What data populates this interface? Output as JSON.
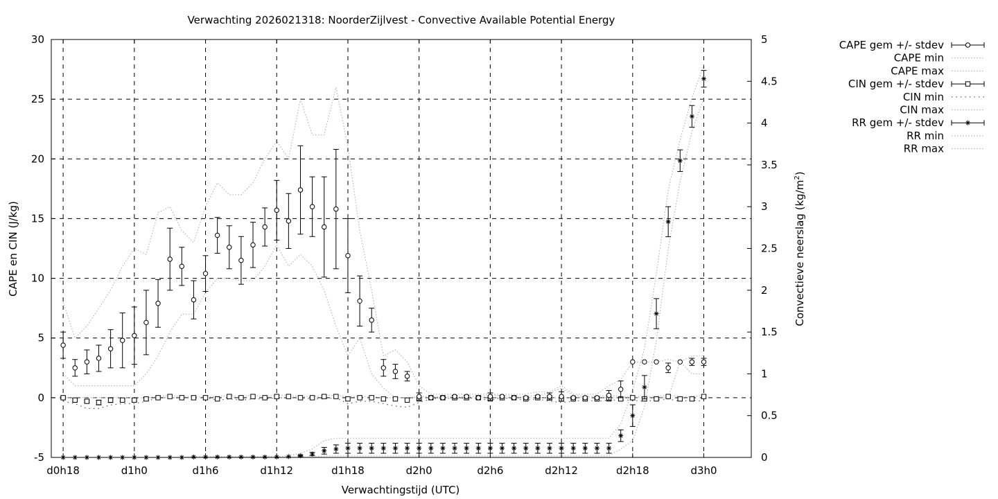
{
  "chart_data": {
    "type": "line",
    "title": "Verwachting 2026021318: NoorderZijlvest - Convective Available Potential Energy",
    "xlabel": "Verwachtingstijd (UTC)",
    "ylabel_left": "CAPE en CIN (J/kg)",
    "ylabel_right": "Convectieve neerslag (kg/m",
    "ylabel_right_sup": "2",
    "ylabel_right_close": ")",
    "x_range_hours": [
      -1,
      58
    ],
    "ylim_left": [
      -5,
      30
    ],
    "ylim_right": [
      0,
      5
    ],
    "x_tick_labels": [
      {
        "h": 0,
        "label": "d0h18"
      },
      {
        "h": 6,
        "label": "d1h0"
      },
      {
        "h": 12,
        "label": "d1h6"
      },
      {
        "h": 18,
        "label": "d1h12"
      },
      {
        "h": 24,
        "label": "d1h18"
      },
      {
        "h": 30,
        "label": "d2h0"
      },
      {
        "h": 36,
        "label": "d2h6"
      },
      {
        "h": 42,
        "label": "d2h12"
      },
      {
        "h": 48,
        "label": "d2h18"
      },
      {
        "h": 54,
        "label": "d3h0"
      }
    ],
    "y_left_ticks": [
      -5,
      0,
      5,
      10,
      15,
      20,
      25,
      30
    ],
    "y_right_ticks": [
      0,
      0.5,
      1,
      1.5,
      2,
      2.5,
      3,
      3.5,
      4,
      4.5,
      5
    ],
    "grid": true,
    "legend_position": "outside-right",
    "legend": [
      {
        "label": "CAPE gem +/- stdev",
        "marker": "circle",
        "style": "errorbar"
      },
      {
        "label": "CAPE min",
        "style": "dotted"
      },
      {
        "label": "CAPE max",
        "style": "dotted"
      },
      {
        "label": "CIN gem +/- stdev",
        "marker": "square",
        "style": "errorbar"
      },
      {
        "label": "CIN min",
        "style": "sparse-dotted"
      },
      {
        "label": "CIN max",
        "style": "dotted"
      },
      {
        "label": "RR gem +/- stdev",
        "marker": "star",
        "style": "errorbar"
      },
      {
        "label": "RR min",
        "style": "dotted"
      },
      {
        "label": "RR max",
        "style": "dotted"
      }
    ],
    "x_hours": [
      0,
      1,
      2,
      3,
      4,
      5,
      6,
      7,
      8,
      9,
      10,
      11,
      12,
      13,
      14,
      15,
      16,
      17,
      18,
      19,
      20,
      21,
      22,
      23,
      24,
      25,
      26,
      27,
      28,
      29,
      30,
      31,
      32,
      33,
      34,
      35,
      36,
      37,
      38,
      39,
      40,
      41,
      42,
      43,
      44,
      45,
      46,
      47,
      48,
      49,
      50,
      51,
      52,
      53,
      54
    ],
    "series": [
      {
        "name": "CAPE gem +/- stdev",
        "axis": "left",
        "mean": [
          4.4,
          2.5,
          3.0,
          3.3,
          4.1,
          4.8,
          5.2,
          6.3,
          7.9,
          11.6,
          11.0,
          8.2,
          10.4,
          13.6,
          12.6,
          11.5,
          12.8,
          14.3,
          15.7,
          14.8,
          17.4,
          16.0,
          14.3,
          15.8,
          11.9,
          8.1,
          6.5,
          2.5,
          2.2,
          1.8,
          0.1,
          0.0,
          0.0,
          0.1,
          0.1,
          0.0,
          0.1,
          0.1,
          0.0,
          0.0,
          0.1,
          0.1,
          0.1,
          0.0,
          0.0,
          0.0,
          0.2,
          0.7,
          3.0,
          3.0,
          3.0,
          2.5,
          3.0,
          3.0,
          3.0
        ],
        "stdev": [
          1.1,
          0.7,
          1.0,
          1.1,
          1.6,
          2.3,
          2.4,
          2.7,
          2.0,
          2.6,
          1.6,
          1.6,
          1.5,
          1.5,
          1.8,
          2.0,
          1.9,
          1.6,
          2.5,
          2.3,
          3.7,
          2.5,
          4.2,
          5.0,
          3.1,
          2.1,
          1.0,
          0.7,
          0.6,
          0.4,
          0.3,
          0.0,
          0.0,
          0.1,
          0.1,
          0.0,
          0.3,
          0.1,
          0.0,
          0.1,
          0.1,
          0.3,
          0.4,
          0.1,
          0.1,
          0.1,
          0.4,
          0.7,
          0.0,
          0.0,
          0.0,
          0.4,
          0.0,
          0.3,
          0.3
        ]
      },
      {
        "name": "CAPE min",
        "axis": "left",
        "values": [
          2.0,
          1.0,
          1.0,
          1.0,
          1.0,
          1.0,
          1.0,
          2.0,
          3.5,
          5.5,
          7.0,
          7.0,
          8.8,
          10.0,
          10.0,
          9.8,
          9.8,
          11.0,
          12.8,
          11.0,
          12.0,
          11.0,
          9.0,
          6.0,
          3.5,
          5.0,
          2.0,
          0.8,
          0.0,
          0.0,
          0.0,
          0.0,
          0.0,
          0.0,
          0.0,
          0.0,
          0.0,
          0.0,
          0.0,
          0.0,
          0.0,
          0.0,
          0.0,
          0.0,
          0.0,
          0.0,
          0.0,
          0.0,
          0.0,
          0.0,
          0.0,
          0.0,
          3.0,
          2.0,
          2.0
        ]
      },
      {
        "name": "CAPE max",
        "axis": "left",
        "values": [
          8.0,
          5.0,
          6.0,
          7.5,
          9.0,
          11.0,
          12.5,
          12.0,
          15.5,
          16.0,
          14.0,
          13.0,
          16.0,
          18.0,
          17.0,
          17.0,
          18.0,
          20.0,
          21.5,
          20.0,
          25.0,
          22.0,
          22.0,
          26.0,
          21.0,
          14.0,
          9.0,
          3.5,
          4.0,
          3.0,
          1.0,
          0.3,
          0.3,
          0.3,
          0.3,
          0.3,
          0.3,
          0.3,
          0.3,
          0.3,
          0.5,
          0.5,
          1.0,
          0.3,
          0.3,
          0.3,
          1.0,
          1.5,
          3.0,
          3.0,
          3.0,
          3.2,
          3.0,
          3.5,
          3.5
        ]
      },
      {
        "name": "CIN gem +/- stdev",
        "axis": "left",
        "mean": [
          0.0,
          -0.2,
          -0.3,
          -0.4,
          -0.2,
          -0.2,
          -0.2,
          -0.1,
          0.0,
          0.1,
          0.0,
          0.0,
          0.0,
          -0.1,
          0.1,
          0.0,
          0.1,
          0.0,
          0.1,
          0.1,
          0.0,
          0.0,
          0.1,
          0.1,
          -0.1,
          0.0,
          0.0,
          -0.1,
          -0.1,
          -0.2,
          -0.1,
          0.0,
          0.0,
          0.0,
          0.0,
          0.0,
          -0.1,
          0.0,
          0.0,
          -0.1,
          0.0,
          0.0,
          -0.1,
          -0.1,
          -0.1,
          -0.1,
          -0.1,
          -0.1,
          0.0,
          -0.1,
          -0.1,
          0.1,
          -0.1,
          -0.1,
          0.1
        ],
        "stdev": [
          0.1,
          0.1,
          0.1,
          0.2,
          0.2,
          0.1,
          0.1,
          0.1,
          0.0,
          0.0,
          0.0,
          0.0,
          0.0,
          0.0,
          0.0,
          0.0,
          0.0,
          0.0,
          0.0,
          0.0,
          0.0,
          0.0,
          0.0,
          0.0,
          0.0,
          0.0,
          0.0,
          0.0,
          0.0,
          0.0,
          0.0,
          0.0,
          0.0,
          0.0,
          0.0,
          0.0,
          0.0,
          0.0,
          0.0,
          0.0,
          0.0,
          0.0,
          0.0,
          0.0,
          0.0,
          0.0,
          0.0,
          0.0,
          0.0,
          0.0,
          0.0,
          0.0,
          0.0,
          0.0,
          0.0
        ]
      },
      {
        "name": "CIN min",
        "axis": "left",
        "values": [
          -0.3,
          -0.5,
          -0.9,
          -0.9,
          -0.6,
          -0.5,
          -0.5,
          -0.3,
          0.0,
          0.0,
          0.0,
          0.0,
          0.0,
          -0.2,
          -0.1,
          -0.2,
          -0.1,
          -0.1,
          0.0,
          0.0,
          0.0,
          -0.1,
          -0.1,
          0.0,
          -0.5,
          -0.3,
          -0.3,
          -0.5,
          -0.7,
          -0.8,
          -0.4,
          -0.1,
          0.0,
          -0.1,
          0.0,
          -0.1,
          -0.2,
          0.0,
          -0.1,
          -0.2,
          -0.1,
          -0.3,
          -0.4,
          -0.3,
          -0.2,
          -0.3,
          -0.2,
          -0.2,
          -0.2,
          -0.3,
          -0.2,
          -0.1,
          -0.3,
          -0.2,
          -0.3
        ]
      },
      {
        "name": "CIN max",
        "axis": "left",
        "values": [
          0.0,
          0.0,
          0.0,
          0.0,
          0.0,
          0.0,
          0.0,
          0.0,
          0.1,
          0.2,
          0.1,
          0.1,
          0.1,
          0.1,
          0.2,
          0.1,
          0.2,
          0.1,
          0.2,
          0.2,
          0.1,
          0.1,
          0.2,
          0.2,
          0.1,
          0.1,
          0.1,
          0.0,
          0.0,
          0.0,
          0.1,
          0.1,
          0.1,
          0.1,
          0.1,
          0.1,
          0.2,
          0.2,
          0.1,
          0.1,
          0.2,
          0.4,
          0.8,
          0.2,
          0.1,
          0.1,
          0.2,
          0.1,
          0.1,
          0.1,
          0.1,
          0.2,
          0.1,
          0.1,
          0.2
        ]
      },
      {
        "name": "RR gem +/- stdev",
        "axis": "right",
        "mean": [
          0.0,
          0.0,
          0.0,
          0.0,
          0.0,
          0.0,
          0.0,
          0.0,
          0.0,
          0.0,
          0.0,
          0.005,
          0.005,
          0.005,
          0.005,
          0.005,
          0.005,
          0.005,
          0.005,
          0.01,
          0.02,
          0.04,
          0.08,
          0.1,
          0.11,
          0.11,
          0.11,
          0.11,
          0.11,
          0.11,
          0.11,
          0.11,
          0.11,
          0.11,
          0.11,
          0.11,
          0.11,
          0.11,
          0.11,
          0.11,
          0.11,
          0.11,
          0.11,
          0.11,
          0.11,
          0.11,
          0.11,
          0.26,
          0.5,
          0.84,
          1.72,
          2.82,
          3.55,
          4.08,
          4.53
        ],
        "stdev": [
          0.0,
          0.0,
          0.0,
          0.0,
          0.0,
          0.0,
          0.0,
          0.0,
          0.0,
          0.0,
          0.0,
          0.0,
          0.0,
          0.0,
          0.0,
          0.0,
          0.0,
          0.0,
          0.0,
          0.0,
          0.01,
          0.02,
          0.04,
          0.05,
          0.06,
          0.06,
          0.06,
          0.06,
          0.06,
          0.06,
          0.06,
          0.06,
          0.06,
          0.06,
          0.06,
          0.06,
          0.06,
          0.06,
          0.06,
          0.06,
          0.06,
          0.06,
          0.06,
          0.06,
          0.06,
          0.06,
          0.06,
          0.07,
          0.13,
          0.14,
          0.18,
          0.18,
          0.13,
          0.13,
          0.1
        ]
      },
      {
        "name": "RR min",
        "axis": "right",
        "values": [
          0.0,
          0.0,
          0.0,
          0.0,
          0.0,
          0.0,
          0.0,
          0.0,
          0.0,
          0.0,
          0.0,
          0.0,
          0.0,
          0.0,
          0.0,
          0.0,
          0.0,
          0.0,
          0.0,
          0.0,
          0.0,
          0.0,
          0.02,
          0.02,
          0.02,
          0.02,
          0.02,
          0.02,
          0.02,
          0.02,
          0.02,
          0.02,
          0.02,
          0.02,
          0.02,
          0.02,
          0.02,
          0.02,
          0.02,
          0.02,
          0.02,
          0.02,
          0.02,
          0.02,
          0.02,
          0.02,
          0.02,
          0.1,
          0.2,
          0.6,
          1.4,
          2.5,
          3.3,
          3.9,
          4.3
        ]
      },
      {
        "name": "RR max",
        "axis": "right",
        "values": [
          0.0,
          0.0,
          0.0,
          0.0,
          0.0,
          0.0,
          0.0,
          0.0,
          0.0,
          0.0,
          0.0,
          0.01,
          0.01,
          0.01,
          0.01,
          0.01,
          0.01,
          0.01,
          0.01,
          0.02,
          0.05,
          0.1,
          0.2,
          0.23,
          0.23,
          0.23,
          0.23,
          0.23,
          0.23,
          0.23,
          0.23,
          0.23,
          0.23,
          0.23,
          0.23,
          0.23,
          0.23,
          0.23,
          0.23,
          0.23,
          0.23,
          0.23,
          0.23,
          0.23,
          0.23,
          0.23,
          0.23,
          0.4,
          0.8,
          1.3,
          2.2,
          3.2,
          3.8,
          4.3,
          4.7
        ]
      }
    ]
  }
}
